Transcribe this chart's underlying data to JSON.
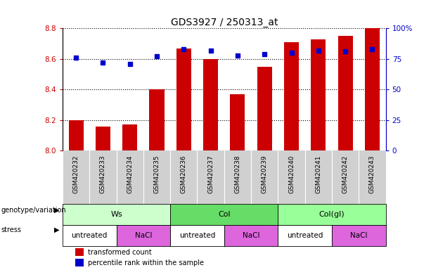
{
  "title": "GDS3927 / 250313_at",
  "samples": [
    "GSM420232",
    "GSM420233",
    "GSM420234",
    "GSM420235",
    "GSM420236",
    "GSM420237",
    "GSM420238",
    "GSM420239",
    "GSM420240",
    "GSM420241",
    "GSM420242",
    "GSM420243"
  ],
  "red_values": [
    8.2,
    8.16,
    8.17,
    8.4,
    8.67,
    8.6,
    8.37,
    8.55,
    8.71,
    8.73,
    8.75,
    8.8
  ],
  "blue_values": [
    76,
    72,
    71,
    77,
    83,
    82,
    78,
    79,
    80,
    82,
    81,
    83
  ],
  "ylim_left": [
    8.0,
    8.8
  ],
  "ylim_right": [
    0,
    100
  ],
  "yticks_left": [
    8.0,
    8.2,
    8.4,
    8.6,
    8.8
  ],
  "yticks_right": [
    0,
    25,
    50,
    75,
    100
  ],
  "bar_color": "#cc0000",
  "dot_color": "#0000cc",
  "bar_base": 8.0,
  "genotype_groups": [
    {
      "label": "Ws",
      "start": 0,
      "end": 4,
      "color": "#ccffcc"
    },
    {
      "label": "Col",
      "start": 4,
      "end": 8,
      "color": "#66dd66"
    },
    {
      "label": "Col(gl)",
      "start": 8,
      "end": 12,
      "color": "#99ff99"
    }
  ],
  "stress_groups": [
    {
      "label": "untreated",
      "start": 0,
      "end": 2,
      "color": "#ffffff"
    },
    {
      "label": "NaCl",
      "start": 2,
      "end": 4,
      "color": "#dd66dd"
    },
    {
      "label": "untreated",
      "start": 4,
      "end": 6,
      "color": "#ffffff"
    },
    {
      "label": "NaCl",
      "start": 6,
      "end": 8,
      "color": "#dd66dd"
    },
    {
      "label": "untreated",
      "start": 8,
      "end": 10,
      "color": "#ffffff"
    },
    {
      "label": "NaCl",
      "start": 10,
      "end": 12,
      "color": "#dd66dd"
    }
  ],
  "legend_items": [
    {
      "label": "transformed count",
      "color": "#cc0000"
    },
    {
      "label": "percentile rank within the sample",
      "color": "#0000cc"
    }
  ],
  "tick_label_color_left": "#cc0000",
  "tick_label_color_right": "#0000cc",
  "background_color": "#ffffff",
  "plot_bg": "#ffffff",
  "sample_label_bg": "#d0d0d0"
}
